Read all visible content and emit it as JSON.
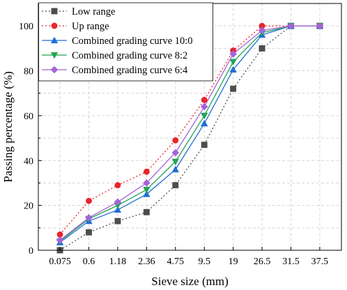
{
  "chart_data": {
    "type": "line",
    "title": "",
    "xlabel": "Sieve size (mm)",
    "ylabel": "Passing percentage (%)",
    "categories": [
      "0.075",
      "0.6",
      "1.18",
      "2.36",
      "4.75",
      "9.5",
      "19",
      "26.5",
      "31.5",
      "37.5"
    ],
    "ylim": [
      0,
      110
    ],
    "yticks": [
      0,
      20,
      40,
      60,
      80,
      100
    ],
    "grid": true,
    "legend_position": "top-left",
    "series": [
      {
        "name": "Low range",
        "values": [
          0,
          8,
          13,
          17,
          29,
          47,
          72,
          90,
          100,
          100
        ],
        "color": "#4d4d4d",
        "marker": "square",
        "line": "dotted"
      },
      {
        "name": "Up range",
        "values": [
          7,
          22,
          29,
          35,
          49,
          67,
          89,
          100,
          100,
          100
        ],
        "color": "#e8252a",
        "marker": "circle",
        "line": "dotted"
      },
      {
        "name": "Combined grading curve 10:0",
        "values": [
          3.5,
          13,
          18,
          25,
          36,
          56.5,
          80.5,
          96,
          100,
          100
        ],
        "color": "#1f6fd6",
        "marker": "triangle-up",
        "line": "solid"
      },
      {
        "name": "Combined grading curve 8:2",
        "values": [
          4,
          14,
          20,
          27,
          39.5,
          60,
          84,
          97,
          100,
          100
        ],
        "color": "#22a354",
        "marker": "triangle-down",
        "line": "solid"
      },
      {
        "name": "Combined grading curve 6:4",
        "values": [
          4.5,
          14.5,
          21.5,
          30,
          43.5,
          64,
          87.5,
          98,
          100,
          100
        ],
        "color": "#a563d9",
        "marker": "diamond",
        "line": "solid"
      }
    ]
  }
}
